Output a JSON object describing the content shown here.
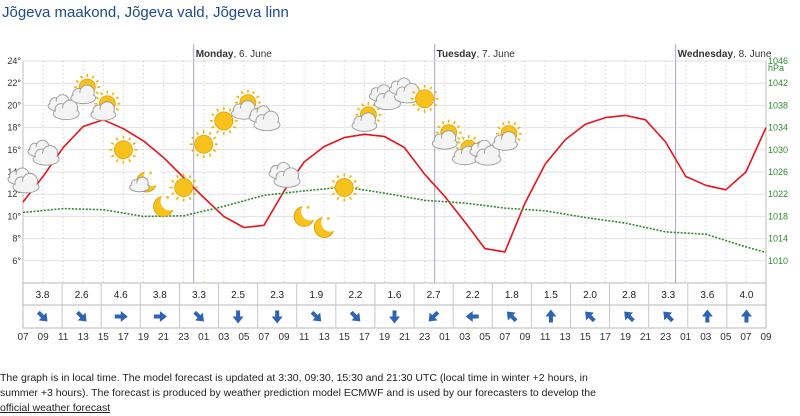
{
  "header": {
    "title": "Jõgeva maakond, Jõgeva vald, Jõgeva linn"
  },
  "days": [
    {
      "label": "Monday",
      "date": ", 6. June"
    },
    {
      "label": "Tuesday",
      "date": ", 7. June"
    },
    {
      "label": "Wednesday",
      "date": ", 8. June"
    }
  ],
  "chart_data": {
    "type": "line",
    "title": "",
    "x_hours": [
      "07",
      "09",
      "11",
      "13",
      "15",
      "17",
      "19",
      "21",
      "23",
      "01",
      "03",
      "05",
      "07",
      "09",
      "11",
      "13",
      "15",
      "17",
      "19",
      "21",
      "23",
      "01",
      "03",
      "05",
      "07",
      "09",
      "11",
      "13",
      "15",
      "17",
      "19",
      "21",
      "23",
      "01",
      "03",
      "05",
      "07",
      "09"
    ],
    "temperature_unit": "°",
    "temperature_ticks": [
      6,
      8,
      10,
      12,
      14,
      16,
      18,
      20,
      22,
      24
    ],
    "temperature_ylim": [
      4,
      24
    ],
    "pressure_unit": "hPa",
    "pressure_ticks": [
      1010,
      1014,
      1018,
      1022,
      1026,
      1030,
      1034,
      1038,
      1042,
      1046
    ],
    "pressure_ylim": [
      1006,
      1046
    ],
    "series": [
      {
        "color": "#e8141b",
        "axis": "left",
        "x": [
          0,
          1,
          2,
          3,
          4,
          5,
          6,
          7,
          8,
          9,
          10,
          11,
          12,
          13,
          14,
          15,
          16,
          17,
          18,
          19,
          20,
          21,
          22,
          23,
          24,
          25,
          26,
          27,
          28,
          29,
          30,
          31,
          32,
          33,
          34,
          35,
          36,
          37
        ],
        "values": [
          11.3,
          13.6,
          16.2,
          18.1,
          18.7,
          17.9,
          16.8,
          15.3,
          13.5,
          11.7,
          10.0,
          9.0,
          9.2,
          12.3,
          14.9,
          16.3,
          17.1,
          17.4,
          17.2,
          16.2,
          13.8,
          11.8,
          9.5,
          7.1,
          6.8,
          11.2,
          14.7,
          16.9,
          18.3,
          18.9,
          19.1,
          18.7,
          16.7,
          13.6,
          12.8,
          12.4,
          14.0,
          18.0
        ]
      },
      {
        "color": "#2e8b2e",
        "axis": "right",
        "x": [
          0,
          2,
          4,
          6,
          8,
          10,
          12,
          14,
          16,
          18,
          20,
          22,
          24,
          26,
          28,
          30,
          32,
          34,
          36,
          37
        ],
        "values": [
          1018.7,
          1019.4,
          1019.2,
          1018.0,
          1018.1,
          1019.8,
          1021.8,
          1022.6,
          1023.3,
          1022.2,
          1020.9,
          1020.4,
          1019.5,
          1019.0,
          1017.8,
          1016.8,
          1015.2,
          1014.8,
          1012.5,
          1011.5
        ]
      }
    ],
    "grid": true
  },
  "weather_icons": [
    {
      "x": 0,
      "temp": 13.2,
      "icon": "cloudy-icon"
    },
    {
      "x": 1,
      "temp": 15.7,
      "icon": "cloudy-icon"
    },
    {
      "x": 2,
      "temp": 19.8,
      "icon": "cloudy-icon"
    },
    {
      "x": 3,
      "temp": 21.2,
      "icon": "partly-cloudy-sun-icon"
    },
    {
      "x": 4,
      "temp": 19.7,
      "icon": "partly-cloudy-sun-icon"
    },
    {
      "x": 5,
      "temp": 16.0,
      "icon": "sun-icon"
    },
    {
      "x": 6,
      "temp": 13.1,
      "icon": "partly-cloudy-moon-icon"
    },
    {
      "x": 7,
      "temp": 10.9,
      "icon": "moon-icon"
    },
    {
      "x": 8,
      "temp": 12.6,
      "icon": "sun-icon"
    },
    {
      "x": 9,
      "temp": 16.5,
      "icon": "sun-icon"
    },
    {
      "x": 10,
      "temp": 18.6,
      "icon": "sun-icon"
    },
    {
      "x": 11,
      "temp": 19.8,
      "icon": "partly-cloudy-sun-icon"
    },
    {
      "x": 12,
      "temp": 18.8,
      "icon": "cloudy-icon"
    },
    {
      "x": 13,
      "temp": 13.7,
      "icon": "cloudy-icon"
    },
    {
      "x": 14,
      "temp": 10.0,
      "icon": "moon-icon"
    },
    {
      "x": 15,
      "temp": 9.0,
      "icon": "moon-icon"
    },
    {
      "x": 16,
      "temp": 12.6,
      "icon": "sun-icon"
    },
    {
      "x": 17,
      "temp": 18.7,
      "icon": "partly-cloudy-sun-icon"
    },
    {
      "x": 18,
      "temp": 20.7,
      "icon": "cloudy-icon"
    },
    {
      "x": 19,
      "temp": 21.3,
      "icon": "cloudy-icon"
    },
    {
      "x": 20,
      "temp": 20.6,
      "icon": "sun-icon"
    },
    {
      "x": 21,
      "temp": 17.1,
      "icon": "partly-cloudy-sun-icon"
    },
    {
      "x": 22,
      "temp": 15.7,
      "icon": "partly-cloudy-sun-icon"
    },
    {
      "x": 23,
      "temp": 15.7,
      "icon": "cloudy-icon"
    },
    {
      "x": 24,
      "temp": 17.0,
      "icon": "partly-cloudy-sun-icon"
    }
  ],
  "wind": {
    "speeds": [
      "3.8",
      "2.6",
      "4.6",
      "3.8",
      "3.3",
      "2.5",
      "2.3",
      "1.9",
      "2.2",
      "1.6",
      "2.7",
      "2.2",
      "1.8",
      "1.5",
      "2.0",
      "2.8",
      "3.3",
      "3.6",
      "4.0"
    ],
    "directions_deg": [
      135,
      135,
      90,
      90,
      135,
      180,
      180,
      135,
      135,
      180,
      225,
      270,
      315,
      0,
      315,
      315,
      315,
      0,
      0
    ]
  },
  "description": {
    "text": "The graph is in local time. The model forecast is updated at 3:30, 09:30, 15:30 and 21:30 UTC (local time in winter +2 hours, in summer +3 hours).  The forecast is produced by weather prediction model ECMWF and is used by our forecasters to develop the ",
    "link": "official weather forecast"
  }
}
